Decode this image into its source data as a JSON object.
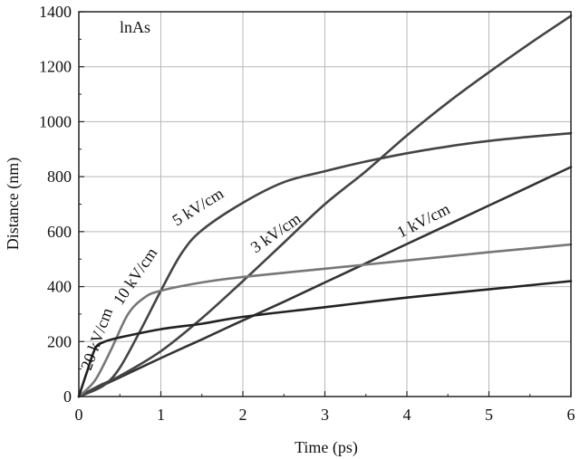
{
  "chart_data": {
    "type": "line",
    "title": "",
    "annotation": "lnAs",
    "xlabel": "Time (ps)",
    "ylabel": "Distance (nm)",
    "xlim": [
      0,
      6
    ],
    "ylim": [
      0,
      1400
    ],
    "xticks": [
      "0",
      "1",
      "2",
      "3",
      "4",
      "5",
      "6"
    ],
    "yticks": [
      "0",
      "200",
      "400",
      "600",
      "800",
      "1000",
      "1200",
      "1400"
    ],
    "grid": true,
    "series": [
      {
        "name": "1 kV/cm",
        "color": "#333333",
        "points": [
          [
            0,
            0
          ],
          [
            0.5,
            70
          ],
          [
            1,
            140
          ],
          [
            1.5,
            208
          ],
          [
            2,
            277
          ],
          [
            2.5,
            345
          ],
          [
            3,
            415
          ],
          [
            3.5,
            485
          ],
          [
            4,
            555
          ],
          [
            4.5,
            625
          ],
          [
            5,
            695
          ],
          [
            5.5,
            765
          ],
          [
            6,
            835
          ]
        ]
      },
      {
        "name": "3 kV/cm",
        "color": "#444444",
        "points": [
          [
            0,
            0
          ],
          [
            0.25,
            40
          ],
          [
            0.5,
            75
          ],
          [
            1,
            165
          ],
          [
            1.5,
            285
          ],
          [
            2,
            420
          ],
          [
            2.5,
            560
          ],
          [
            3,
            700
          ],
          [
            3.5,
            820
          ],
          [
            4,
            950
          ],
          [
            4.5,
            1070
          ],
          [
            5,
            1180
          ],
          [
            5.5,
            1285
          ],
          [
            6,
            1385
          ]
        ]
      },
      {
        "name": "5 kV/cm",
        "color": "#444444",
        "points": [
          [
            0,
            0
          ],
          [
            0.3,
            40
          ],
          [
            0.5,
            105
          ],
          [
            0.75,
            240
          ],
          [
            1,
            385
          ],
          [
            1.25,
            520
          ],
          [
            1.5,
            605
          ],
          [
            2,
            705
          ],
          [
            2.5,
            780
          ],
          [
            3,
            820
          ],
          [
            3.5,
            855
          ],
          [
            4,
            885
          ],
          [
            4.5,
            910
          ],
          [
            5,
            930
          ],
          [
            5.5,
            945
          ],
          [
            6,
            958
          ]
        ]
      },
      {
        "name": "10 kV/cm",
        "color": "#777777",
        "points": [
          [
            0,
            0
          ],
          [
            0.2,
            60
          ],
          [
            0.4,
            175
          ],
          [
            0.6,
            300
          ],
          [
            0.8,
            360
          ],
          [
            1,
            385
          ],
          [
            1.5,
            415
          ],
          [
            2,
            435
          ],
          [
            3,
            465
          ],
          [
            4,
            495
          ],
          [
            5,
            525
          ],
          [
            6,
            553
          ]
        ]
      },
      {
        "name": "20 kV/cm",
        "color": "#222222",
        "points": [
          [
            0,
            0
          ],
          [
            0.1,
            90
          ],
          [
            0.2,
            175
          ],
          [
            0.3,
            198
          ],
          [
            0.5,
            215
          ],
          [
            1,
            245
          ],
          [
            1.5,
            265
          ],
          [
            2,
            290
          ],
          [
            3,
            325
          ],
          [
            4,
            360
          ],
          [
            5,
            390
          ],
          [
            6,
            420
          ]
        ]
      }
    ]
  }
}
